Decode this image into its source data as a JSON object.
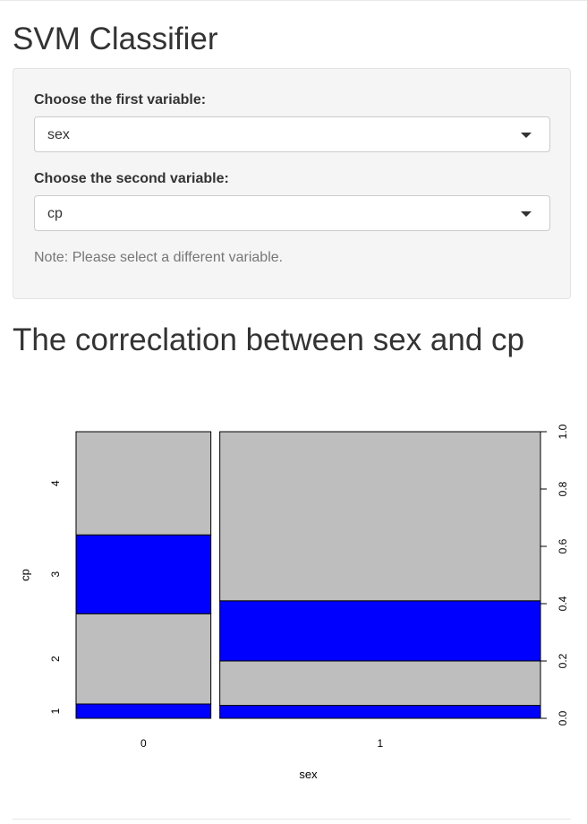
{
  "app": {
    "title": "SVM Classifier"
  },
  "sidebar": {
    "first_label": "Choose the first variable:",
    "first_value": "sex",
    "second_label": "Choose the second variable:",
    "second_value": "cp",
    "note": "Note: Please select a different variable."
  },
  "main": {
    "plot_title": "The correclation between sex and cp"
  },
  "colors": {
    "highlight": "#0000ff",
    "base": "#bebebe",
    "stroke": "#000000"
  },
  "chart_data": {
    "type": "spineplot",
    "xlabel": "sex",
    "ylabel": "cp",
    "categories": [
      "0",
      "1"
    ],
    "column_widths": [
      0.296,
      0.704
    ],
    "y_levels": [
      "1",
      "2",
      "3",
      "4"
    ],
    "segments": [
      {
        "category": "0",
        "cumulative": [
          0.05,
          0.365,
          0.64,
          1.0
        ]
      },
      {
        "category": "1",
        "cumulative": [
          0.045,
          0.2,
          0.41,
          1.0
        ]
      }
    ],
    "y2_ticks": [
      "0.0",
      "0.2",
      "0.4",
      "0.6",
      "0.8",
      "1.0"
    ],
    "ylim": [
      0,
      1
    ]
  }
}
